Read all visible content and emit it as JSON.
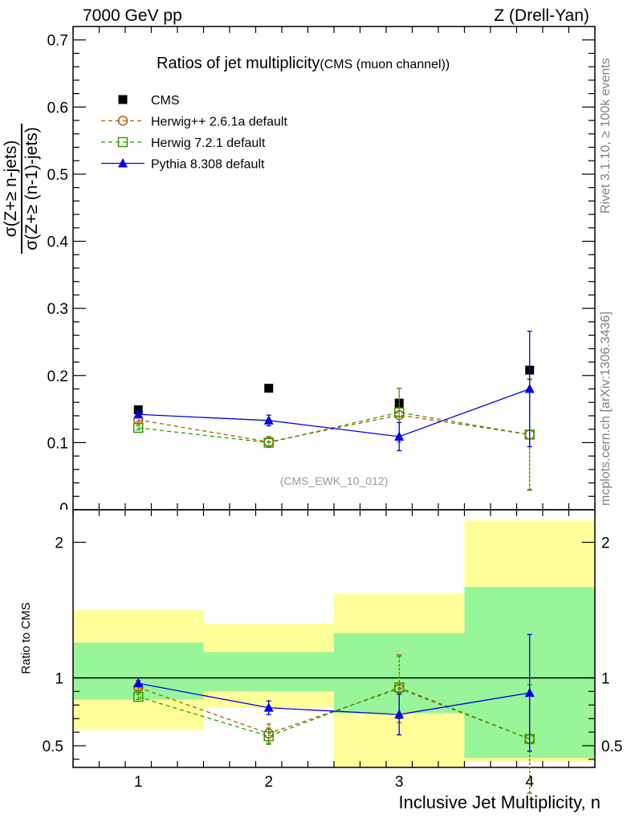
{
  "header": {
    "left": "7000 GeV pp",
    "right": "Z (Drell-Yan)"
  },
  "side": {
    "rivet": "Rivet 3.1.10, ≥ 100k events",
    "mcplots": "mcplots.cern.ch [arXiv:1306.3436]"
  },
  "axes": {
    "ylabel_num": "σ(Z+≥ n-jets)",
    "ylabel_den": "σ(Z+≥ (n-1)-jets)",
    "ratio_ylabel": "Ratio to CMS",
    "xlabel": "Inclusive Jet Multiplicity, n"
  },
  "colors": {
    "cms": "#000000",
    "herwigpp": "#b35900",
    "herwig7": "#339900",
    "pythia": "#0000e6",
    "band_inner": "#99f599",
    "band_outer": "#ffff99"
  },
  "chart_data": [
    {
      "type": "scatter",
      "title": "Ratios of jet multiplicity",
      "subtitle": "(CMS (muon channel))",
      "watermark": "(CMS_EWK_10_012)",
      "x": [
        1,
        2,
        3,
        4
      ],
      "xlim": [
        0.5,
        4.5
      ],
      "ylim": [
        0,
        0.72
      ],
      "yticks": [
        0.1,
        0.2,
        0.3,
        0.4,
        0.5,
        0.6,
        0.7
      ],
      "ytick_labels": [
        "0.1",
        "0.2",
        "0.3",
        "0.4",
        "0.5",
        "0.6",
        "0.7"
      ],
      "ytick_zero_label": "0",
      "legend_position": "top-left",
      "series": [
        {
          "name": "CMS",
          "style": "data",
          "values": [
            0.149,
            0.181,
            0.159,
            0.208
          ],
          "errors": [
            0,
            0,
            0,
            0
          ]
        },
        {
          "name": "Herwig++ 2.6.1a default",
          "style": "dashed-circle",
          "values": [
            0.134,
            0.101,
            0.141,
            0.112
          ],
          "errors": [
            0.003,
            0.008,
            0.04,
            0.082
          ]
        },
        {
          "name": "Herwig 7.2.1 default",
          "style": "dashed-square",
          "values": [
            0.122,
            0.1,
            0.145,
            0.112
          ],
          "errors": [
            0.003,
            0.006,
            0.036,
            0.083
          ]
        },
        {
          "name": "Pythia 8.308 default",
          "style": "solid-triangle",
          "values": [
            0.142,
            0.133,
            0.109,
            0.18
          ],
          "errors": [
            0.003,
            0.008,
            0.021,
            0.086
          ]
        }
      ]
    },
    {
      "type": "scatter",
      "ylabel": "Ratio to CMS",
      "x": [
        1,
        2,
        3,
        4
      ],
      "xlim": [
        0.5,
        4.5
      ],
      "xticks": [
        1,
        2,
        3,
        4
      ],
      "xtick_labels": [
        "1",
        "2",
        "3",
        "4"
      ],
      "ylim": [
        0.34,
        2.24
      ],
      "yticks": [
        0.5,
        1,
        2
      ],
      "ytick_labels": [
        "0.5",
        "1",
        "2"
      ],
      "bands": [
        {
          "xlo": 0.5,
          "xhi": 1.5,
          "inner": [
            0.84,
            1.26
          ],
          "outer": [
            0.62,
            1.5
          ]
        },
        {
          "xlo": 1.5,
          "xhi": 2.5,
          "inner": [
            0.9,
            1.19
          ],
          "outer": [
            0.78,
            1.4
          ]
        },
        {
          "xlo": 2.5,
          "xhi": 3.5,
          "inner": [
            0.74,
            1.33
          ],
          "outer": [
            0.34,
            1.62
          ]
        },
        {
          "xlo": 3.5,
          "xhi": 4.5,
          "inner": [
            0.41,
            1.67
          ],
          "outer": [
            0.38,
            2.16
          ]
        }
      ],
      "series": [
        {
          "name": "Herwig++ 2.6.1a default",
          "style": "dashed-circle",
          "values": [
            0.93,
            0.59,
            0.92,
            0.55
          ],
          "errors": [
            0.02,
            0.07,
            0.25,
            0.4
          ]
        },
        {
          "name": "Herwig 7.2.1 default",
          "style": "dashed-square",
          "values": [
            0.86,
            0.57,
            0.93,
            0.55
          ],
          "errors": [
            0.02,
            0.06,
            0.23,
            0.4
          ]
        },
        {
          "name": "Pythia 8.308 default",
          "style": "solid-triangle",
          "values": [
            0.96,
            0.78,
            0.73,
            0.89
          ],
          "errors": [
            0.02,
            0.05,
            0.15,
            0.43
          ]
        }
      ]
    }
  ]
}
